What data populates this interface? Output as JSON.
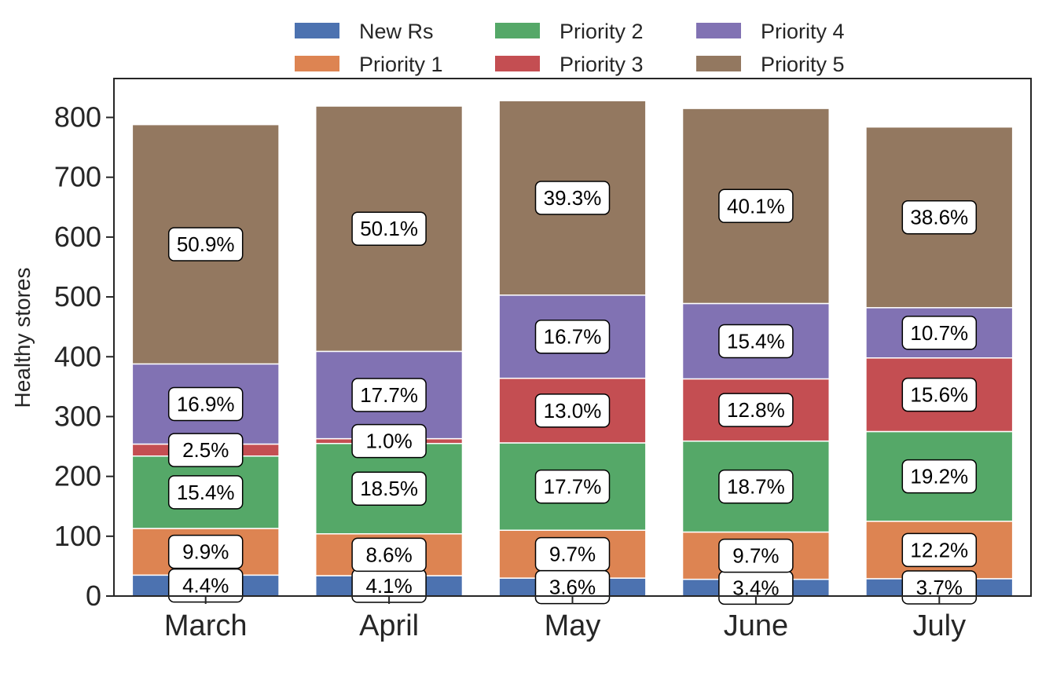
{
  "chart_data": {
    "type": "bar",
    "stacked": true,
    "title": "",
    "xlabel": "",
    "ylabel": "Healthy stores",
    "ylim": [
      0,
      865
    ],
    "yticks": [
      0,
      100,
      200,
      300,
      400,
      500,
      600,
      700,
      800
    ],
    "categories": [
      "March",
      "April",
      "May",
      "June",
      "July"
    ],
    "legend": {
      "placement": "top-center",
      "columns": 3
    },
    "series": [
      {
        "name": "New Rs",
        "color": "#4c72b0",
        "values": [
          35,
          34,
          30,
          28,
          29
        ],
        "labels": [
          "4.4%",
          "4.1%",
          "3.6%",
          "3.4%",
          "3.7%"
        ]
      },
      {
        "name": "Priority 1",
        "color": "#dd8452",
        "values": [
          78,
          70,
          80,
          79,
          96
        ],
        "labels": [
          "9.9%",
          "8.6%",
          "9.7%",
          "9.7%",
          "12.2%"
        ]
      },
      {
        "name": "Priority 2",
        "color": "#55a868",
        "values": [
          121,
          151,
          146,
          152,
          150
        ],
        "labels": [
          "15.4%",
          "18.5%",
          "17.7%",
          "18.7%",
          "19.2%"
        ]
      },
      {
        "name": "Priority 3",
        "color": "#c44e52",
        "values": [
          20,
          8,
          108,
          104,
          123
        ],
        "labels": [
          "2.5%",
          "1.0%",
          "13.0%",
          "12.8%",
          "15.6%"
        ]
      },
      {
        "name": "Priority 4",
        "color": "#8172b3",
        "values": [
          134,
          146,
          139,
          126,
          84
        ],
        "labels": [
          "16.9%",
          "17.7%",
          "16.7%",
          "15.4%",
          "10.7%"
        ]
      },
      {
        "name": "Priority 5",
        "color": "#937860",
        "values": [
          400,
          410,
          325,
          326,
          302
        ],
        "labels": [
          "50.9%",
          "50.1%",
          "39.3%",
          "40.1%",
          "38.6%"
        ]
      }
    ]
  }
}
